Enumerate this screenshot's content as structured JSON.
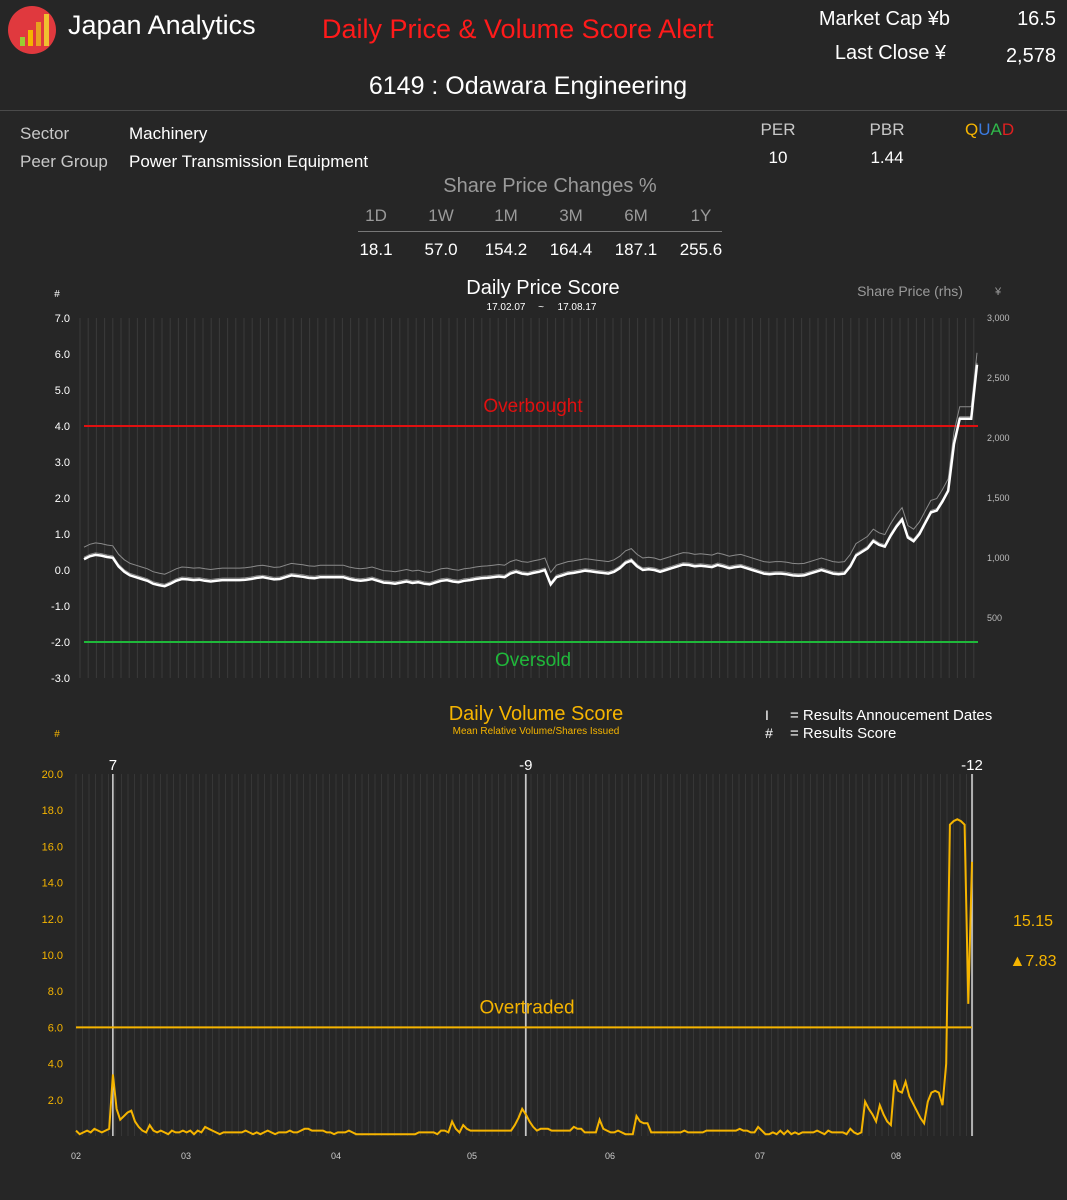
{
  "header": {
    "brand": "Japan Analytics",
    "alert_title": "Daily Price & Volume Score Alert",
    "market_cap_label": "Market Cap ¥b",
    "market_cap_value": "16.5",
    "last_close_label": "Last Close ¥",
    "last_close_value": "2,578",
    "stock_title": "6149 : Odawara Engineering"
  },
  "meta": {
    "sector_label": "Sector",
    "sector_value": "Machinery",
    "peer_label": "Peer Group",
    "peer_value": "Power Transmission Equipment"
  },
  "ratios": {
    "per_label": "PER",
    "per_value": "10",
    "pbr_label": "PBR",
    "pbr_value": "1.44",
    "quad": [
      {
        "letter": "Q",
        "color": "#f5b400"
      },
      {
        "letter": "U",
        "color": "#3b7be0"
      },
      {
        "letter": "A",
        "color": "#2fb84a"
      },
      {
        "letter": "D",
        "color": "#e02020"
      }
    ]
  },
  "price_changes": {
    "title": "Share Price Changes %",
    "periods": [
      "1D",
      "1W",
      "1M",
      "3M",
      "6M",
      "1Y"
    ],
    "values": [
      "18.1",
      "57.0",
      "154.2",
      "164.4",
      "187.1",
      "255.6"
    ]
  },
  "chart_data": [
    {
      "type": "line",
      "title": "Daily Price Score",
      "date_from": "17.02.07",
      "date_sep": "~",
      "date_to": "17.08.17",
      "ylabel": "#",
      "y2label": "Share Price (rhs)",
      "y2unit": "¥",
      "ylim": [
        -3,
        7
      ],
      "yticks": [
        "7.0",
        "6.0",
        "5.0",
        "4.0",
        "3.0",
        "2.0",
        "1.0",
        "0.0",
        "-1.0",
        "-2.0",
        "-3.0"
      ],
      "y2lim": [
        0,
        3000
      ],
      "y2ticks": [
        "3,000",
        "2,500",
        "2,000",
        "1,500",
        "1,000",
        "500"
      ],
      "overbought": {
        "label": "Overbought",
        "value": 4.0,
        "color": "#e01010"
      },
      "oversold": {
        "label": "Oversold",
        "value": -2.0,
        "color": "#1fb83a"
      },
      "series": [
        {
          "name": "Price Score",
          "color": "#ffffff",
          "values": [
            0.3,
            0.38,
            0.42,
            0.4,
            0.36,
            0.34,
            0.1,
            -0.05,
            -0.15,
            -0.2,
            -0.25,
            -0.3,
            -0.38,
            -0.42,
            -0.45,
            -0.38,
            -0.3,
            -0.25,
            -0.26,
            -0.28,
            -0.27,
            -0.3,
            -0.32,
            -0.3,
            -0.28,
            -0.28,
            -0.28,
            -0.28,
            -0.27,
            -0.25,
            -0.22,
            -0.2,
            -0.23,
            -0.26,
            -0.25,
            -0.2,
            -0.15,
            -0.17,
            -0.19,
            -0.22,
            -0.23,
            -0.2,
            -0.2,
            -0.2,
            -0.2,
            -0.2,
            -0.25,
            -0.28,
            -0.3,
            -0.28,
            -0.25,
            -0.3,
            -0.35,
            -0.36,
            -0.38,
            -0.35,
            -0.32,
            -0.36,
            -0.34,
            -0.38,
            -0.4,
            -0.35,
            -0.3,
            -0.28,
            -0.32,
            -0.34,
            -0.3,
            -0.28,
            -0.25,
            -0.23,
            -0.22,
            -0.2,
            -0.18,
            -0.2,
            -0.1,
            -0.05,
            -0.1,
            -0.12,
            -0.08,
            -0.05,
            0.0,
            -0.4,
            -0.2,
            -0.15,
            -0.1,
            -0.08,
            -0.05,
            -0.02,
            -0.04,
            -0.06,
            -0.08,
            -0.1,
            -0.05,
            0.05,
            0.2,
            0.26,
            0.1,
            0.0,
            0.02,
            0.0,
            -0.05,
            0.0,
            0.05,
            0.1,
            0.15,
            0.14,
            0.1,
            0.12,
            0.1,
            0.08,
            0.14,
            0.1,
            0.05,
            0.08,
            0.1,
            0.05,
            0.0,
            -0.05,
            -0.1,
            -0.12,
            -0.1,
            -0.1,
            -0.12,
            -0.15,
            -0.16,
            -0.15,
            -0.1,
            -0.05,
            0.0,
            -0.05,
            -0.1,
            -0.12,
            -0.1,
            0.1,
            0.4,
            0.5,
            0.6,
            0.8,
            0.7,
            0.65,
            0.95,
            1.2,
            1.4,
            0.9,
            0.8,
            1.0,
            1.3,
            1.6,
            1.65,
            1.9,
            2.2,
            3.5,
            4.2,
            4.2,
            4.2,
            5.7
          ]
        },
        {
          "name": "Share Price (rhs)",
          "color": "#8a8a8a",
          "axis": "right"
        }
      ]
    },
    {
      "type": "line",
      "title": "Daily Volume Score",
      "subtitle": "Mean Relative Volume/Shares Issued",
      "ylabel": "#",
      "ylim": [
        0,
        20
      ],
      "yticks": [
        "20.0",
        "18.0",
        "16.0",
        "14.0",
        "12.0",
        "10.0",
        "8.0",
        "6.0",
        "4.0",
        "2.0"
      ],
      "x_ticks": [
        "02",
        "03",
        "04",
        "05",
        "06",
        "07",
        "08"
      ],
      "overtraded": {
        "label": "Overtraded",
        "value": 6.0,
        "color": "#f5b400"
      },
      "legend": [
        {
          "symbol": "I",
          "text": "= Results Annoucement Dates"
        },
        {
          "symbol": "#",
          "text": "= Results Score"
        }
      ],
      "results_markers": [
        {
          "score": "7",
          "index": 10
        },
        {
          "score": "-9",
          "index": 122
        },
        {
          "score": "-12",
          "index": 243
        }
      ],
      "last_value": "15.15",
      "change": "▲7.83",
      "series": [
        {
          "name": "Volume Score",
          "color": "#f5b400",
          "values": [
            0.3,
            0.1,
            0.2,
            0.3,
            0.2,
            0.4,
            0.3,
            0.2,
            0.3,
            0.4,
            3.4,
            1.5,
            0.9,
            1.1,
            1.3,
            1.4,
            0.8,
            0.5,
            0.3,
            0.2,
            0.6,
            0.3,
            0.2,
            0.3,
            0.2,
            0.1,
            0.3,
            0.2,
            0.2,
            0.3,
            0.2,
            0.3,
            0.1,
            0.3,
            0.2,
            0.5,
            0.4,
            0.3,
            0.2,
            0.1,
            0.2,
            0.2,
            0.2,
            0.2,
            0.2,
            0.2,
            0.3,
            0.2,
            0.1,
            0.2,
            0.1,
            0.2,
            0.3,
            0.2,
            0.1,
            0.2,
            0.2,
            0.2,
            0.3,
            0.2,
            0.2,
            0.3,
            0.4,
            0.4,
            0.3,
            0.3,
            0.3,
            0.3,
            0.2,
            0.2,
            0.1,
            0.2,
            0.2,
            0.2,
            0.3,
            0.2,
            0.1,
            0.1,
            0.1,
            0.1,
            0.1,
            0.1,
            0.1,
            0.1,
            0.1,
            0.1,
            0.1,
            0.1,
            0.1,
            0.1,
            0.1,
            0.1,
            0.1,
            0.2,
            0.2,
            0.2,
            0.2,
            0.2,
            0.1,
            0.3,
            0.3,
            0.2,
            0.8,
            0.4,
            0.2,
            0.6,
            0.4,
            0.3,
            0.3,
            0.3,
            0.3,
            0.3,
            0.3,
            0.3,
            0.3,
            0.3,
            0.3,
            0.3,
            0.3,
            0.6,
            1.0,
            1.5,
            1.2,
            0.8,
            0.5,
            0.3,
            0.4,
            0.4,
            0.4,
            0.3,
            0.3,
            0.3,
            0.3,
            0.3,
            0.3,
            0.5,
            0.4,
            0.4,
            0.2,
            0.2,
            0.2,
            0.2,
            0.9,
            0.4,
            0.3,
            0.2,
            0.2,
            0.3,
            0.2,
            0.1,
            0.1,
            0.1,
            1.1,
            0.8,
            0.7,
            0.7,
            0.2,
            0.2,
            0.2,
            0.2,
            0.2,
            0.2,
            0.2,
            0.2,
            0.2,
            0.3,
            0.2,
            0.2,
            0.2,
            0.2,
            0.2,
            0.3,
            0.3,
            0.3,
            0.3,
            0.3,
            0.3,
            0.3,
            0.3,
            0.3,
            0.4,
            0.3,
            0.3,
            0.2,
            0.2,
            0.5,
            0.3,
            0.1,
            0.1,
            0.2,
            0.1,
            0.3,
            0.1,
            0.3,
            0.1,
            0.2,
            0.1,
            0.2,
            0.2,
            0.2,
            0.2,
            0.3,
            0.2,
            0.1,
            0.3,
            0.2,
            0.2,
            0.2,
            0.2,
            0.1,
            0.4,
            0.2,
            0.1,
            0.2,
            1.9,
            1.5,
            1.2,
            0.8,
            1.7,
            1.2,
            0.8,
            0.6,
            3.1,
            2.5,
            2.4,
            3.0,
            2.2,
            1.8,
            1.4,
            1.0,
            0.7,
            1.9,
            2.4,
            2.5,
            2.4,
            1.7,
            4.0,
            17.2,
            17.4,
            17.5,
            17.4,
            17.2,
            7.3,
            15.15
          ]
        }
      ]
    }
  ]
}
